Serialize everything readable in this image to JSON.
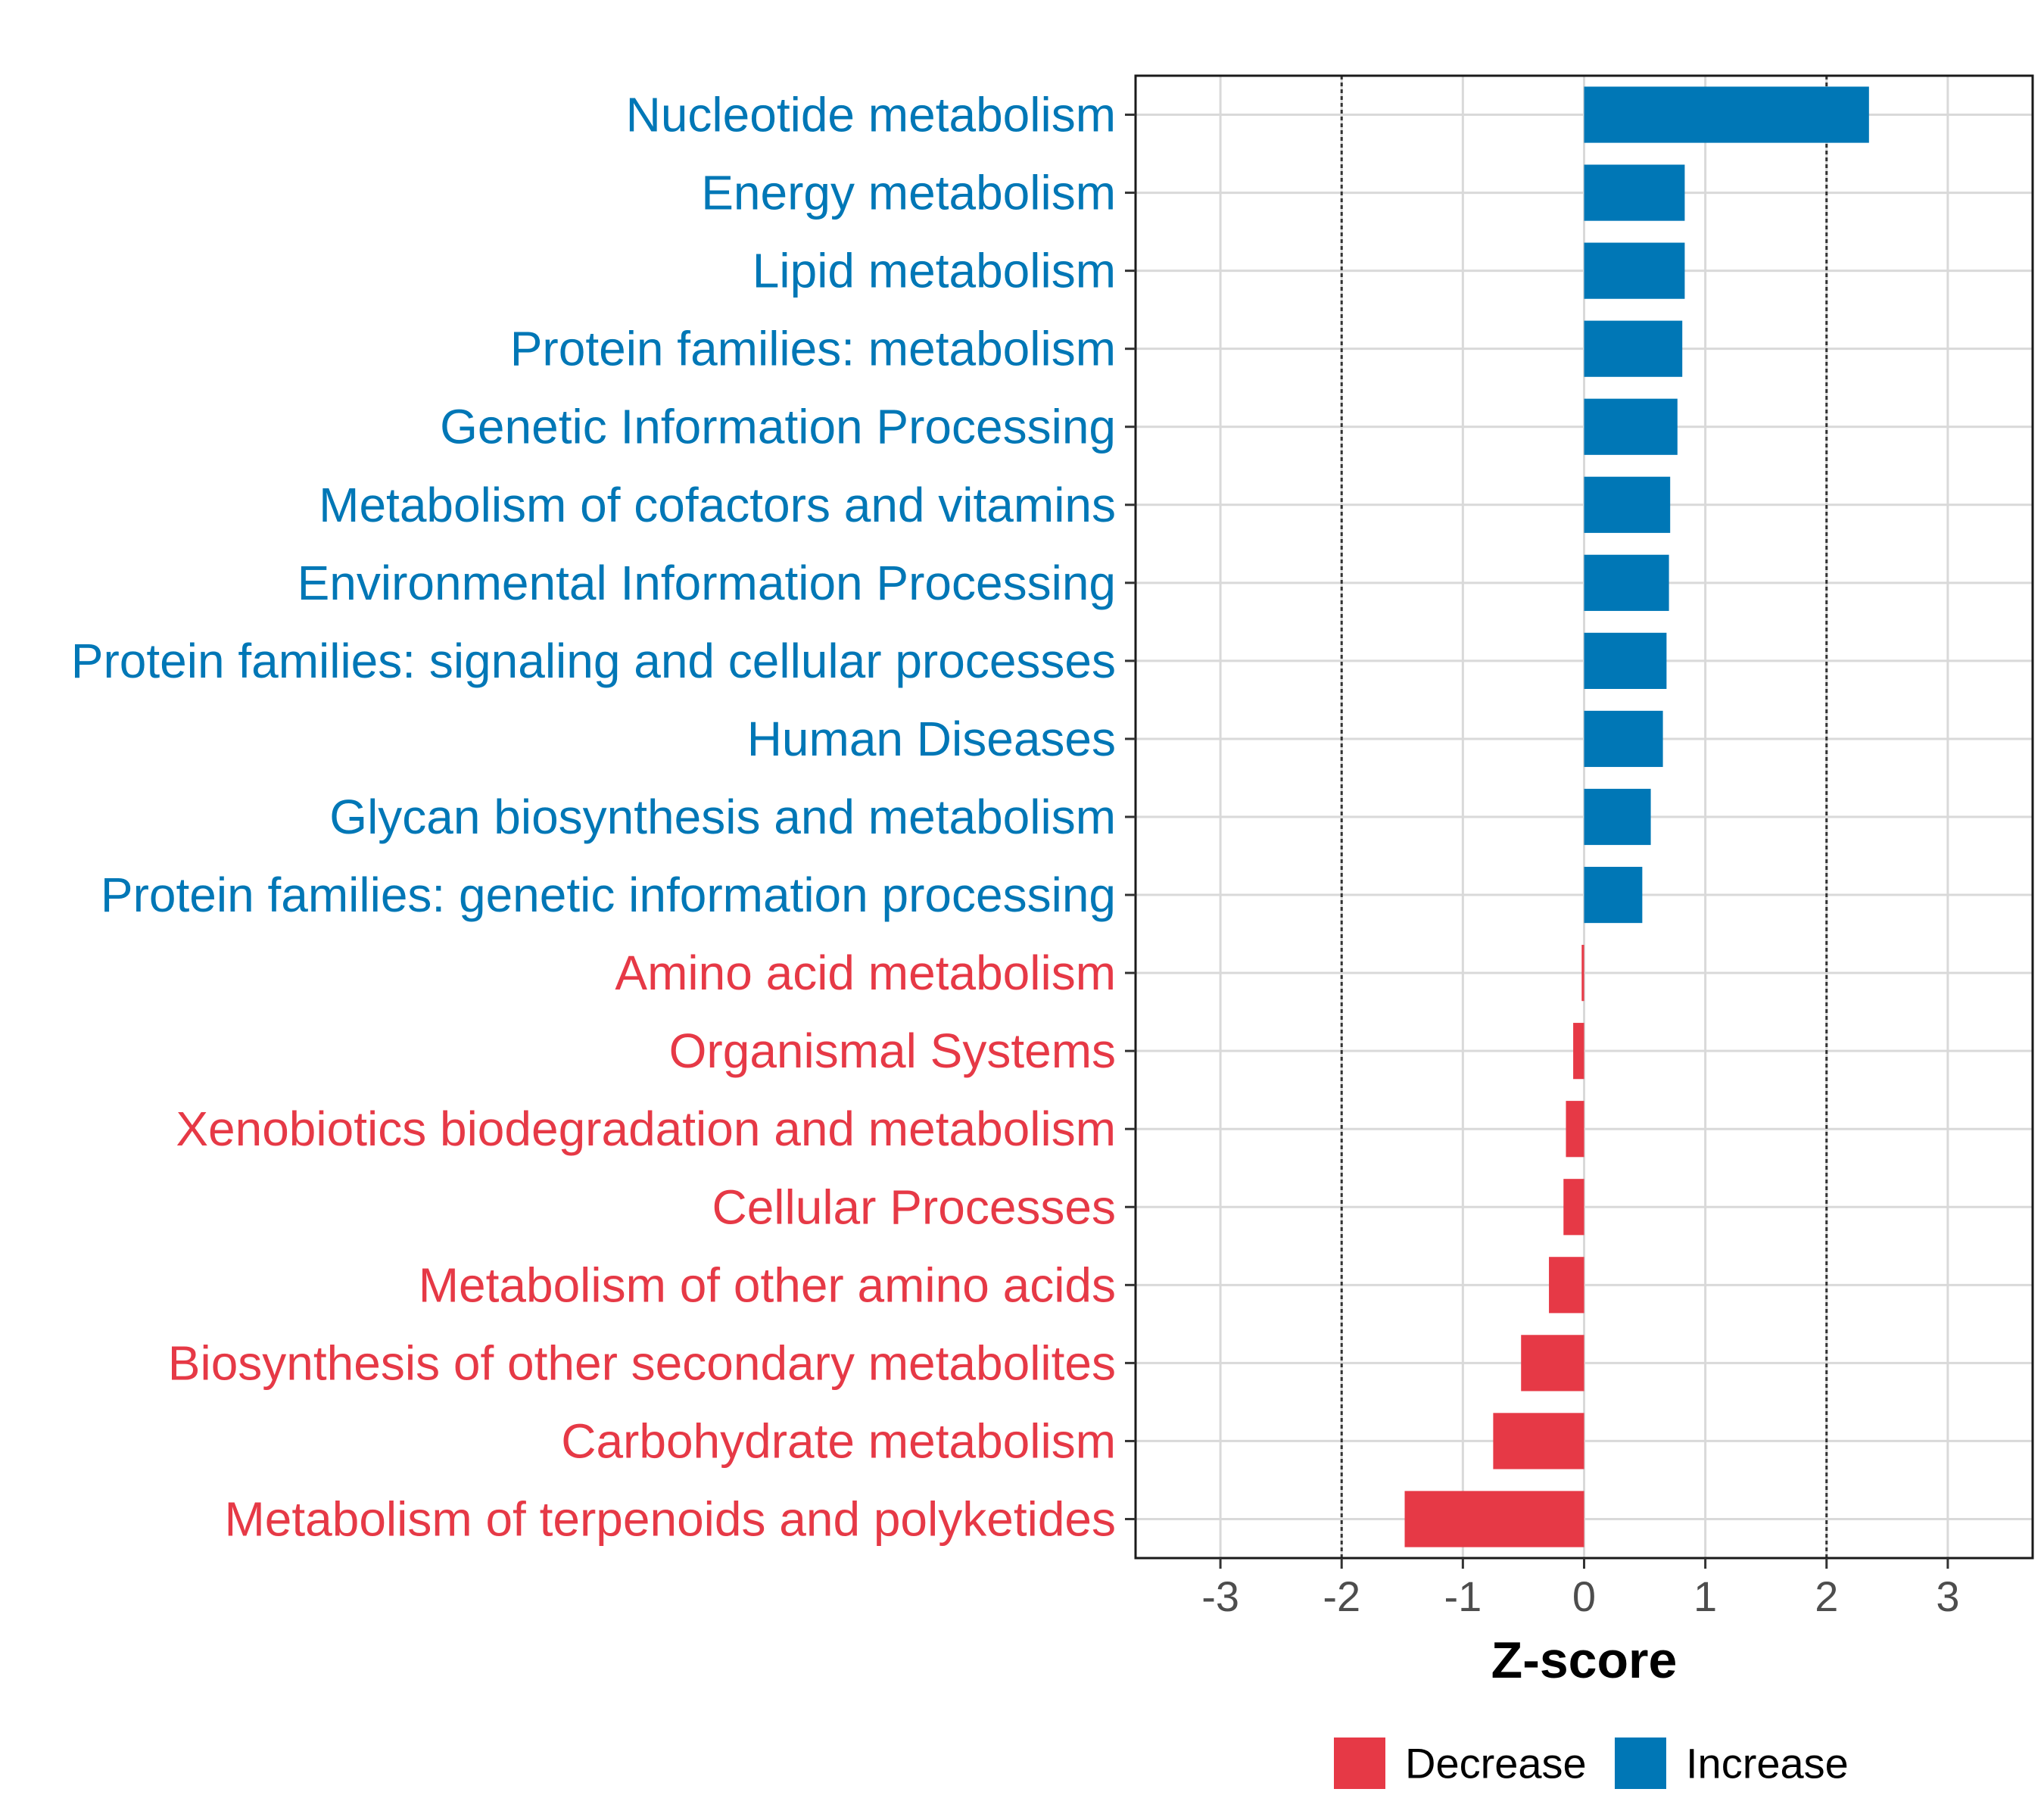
{
  "chart_data": {
    "type": "bar",
    "orientation": "horizontal",
    "xlabel": "Z-score",
    "xlim": [
      -3.7,
      3.7
    ],
    "xticks": [
      -3,
      -2,
      -1,
      0,
      1,
      2,
      3
    ],
    "xtick_labels": [
      "-3",
      "-2",
      "-1",
      "0",
      "1",
      "2",
      "3"
    ],
    "reference_lines": [
      -2,
      2
    ],
    "grid": true,
    "legend_position": "bottom",
    "colors": {
      "Decrease": "#E63946",
      "Increase": "#0077B6"
    },
    "legend": [
      {
        "label": "Decrease",
        "color": "#E63946"
      },
      {
        "label": "Increase",
        "color": "#0077B6"
      }
    ],
    "categories": [
      "Nucleotide metabolism",
      "Energy metabolism",
      "Lipid metabolism",
      "Protein families: metabolism",
      "Genetic Information Processing",
      "Metabolism of cofactors and vitamins",
      "Environmental Information Processing",
      "Protein families: signaling and cellular processes",
      "Human Diseases",
      "Glycan biosynthesis and metabolism",
      "Protein families: genetic information processing",
      "Amino acid metabolism",
      "Organismal Systems",
      "Xenobiotics biodegradation and metabolism",
      "Cellular Processes",
      "Metabolism of other amino acids",
      "Biosynthesis of other secondary metabolites",
      "Carbohydrate metabolism",
      "Metabolism of terpenoids and polyketides"
    ],
    "values": [
      2.35,
      0.83,
      0.83,
      0.81,
      0.77,
      0.71,
      0.7,
      0.68,
      0.65,
      0.55,
      0.48,
      -0.02,
      -0.09,
      -0.15,
      -0.17,
      -0.29,
      -0.52,
      -0.75,
      -1.48
    ],
    "groups": [
      "Increase",
      "Increase",
      "Increase",
      "Increase",
      "Increase",
      "Increase",
      "Increase",
      "Increase",
      "Increase",
      "Increase",
      "Increase",
      "Decrease",
      "Decrease",
      "Decrease",
      "Decrease",
      "Decrease",
      "Decrease",
      "Decrease",
      "Decrease"
    ]
  }
}
